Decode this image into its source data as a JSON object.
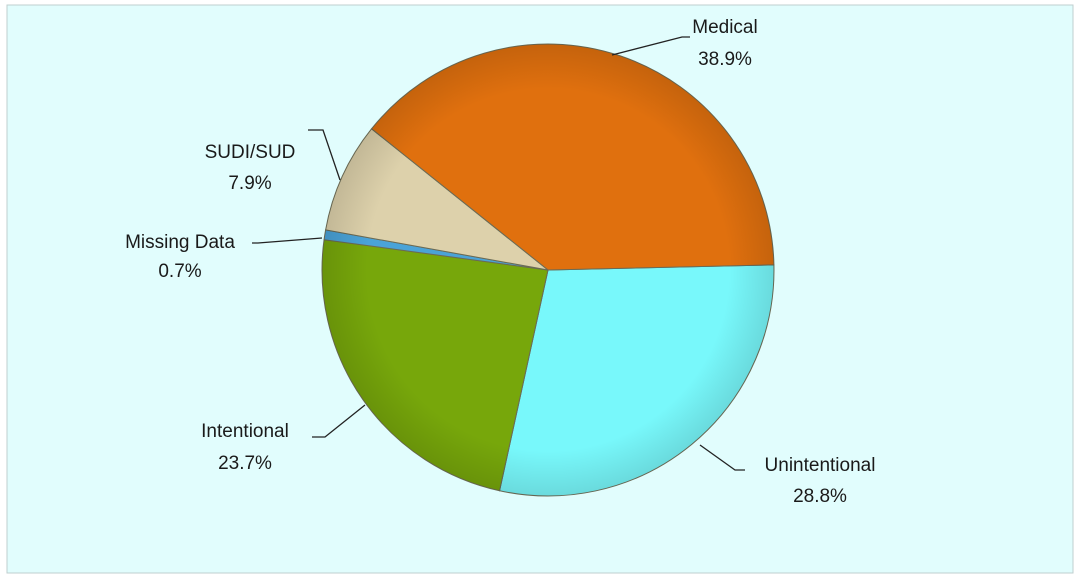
{
  "chart_data": {
    "type": "pie",
    "categories": [
      "Unintentional",
      "Intentional",
      "Missing Data",
      "SUDI/SUD",
      "Medical"
    ],
    "values": [
      28.8,
      23.7,
      0.7,
      7.9,
      38.9
    ],
    "value_labels": [
      "28.8%",
      "23.7%",
      "0.7%",
      "7.9%",
      "38.9%"
    ],
    "colors": [
      "#78f8fb",
      "#77a70b",
      "#4aa3d8",
      "#ddd1ab",
      "#e0700e"
    ]
  }
}
